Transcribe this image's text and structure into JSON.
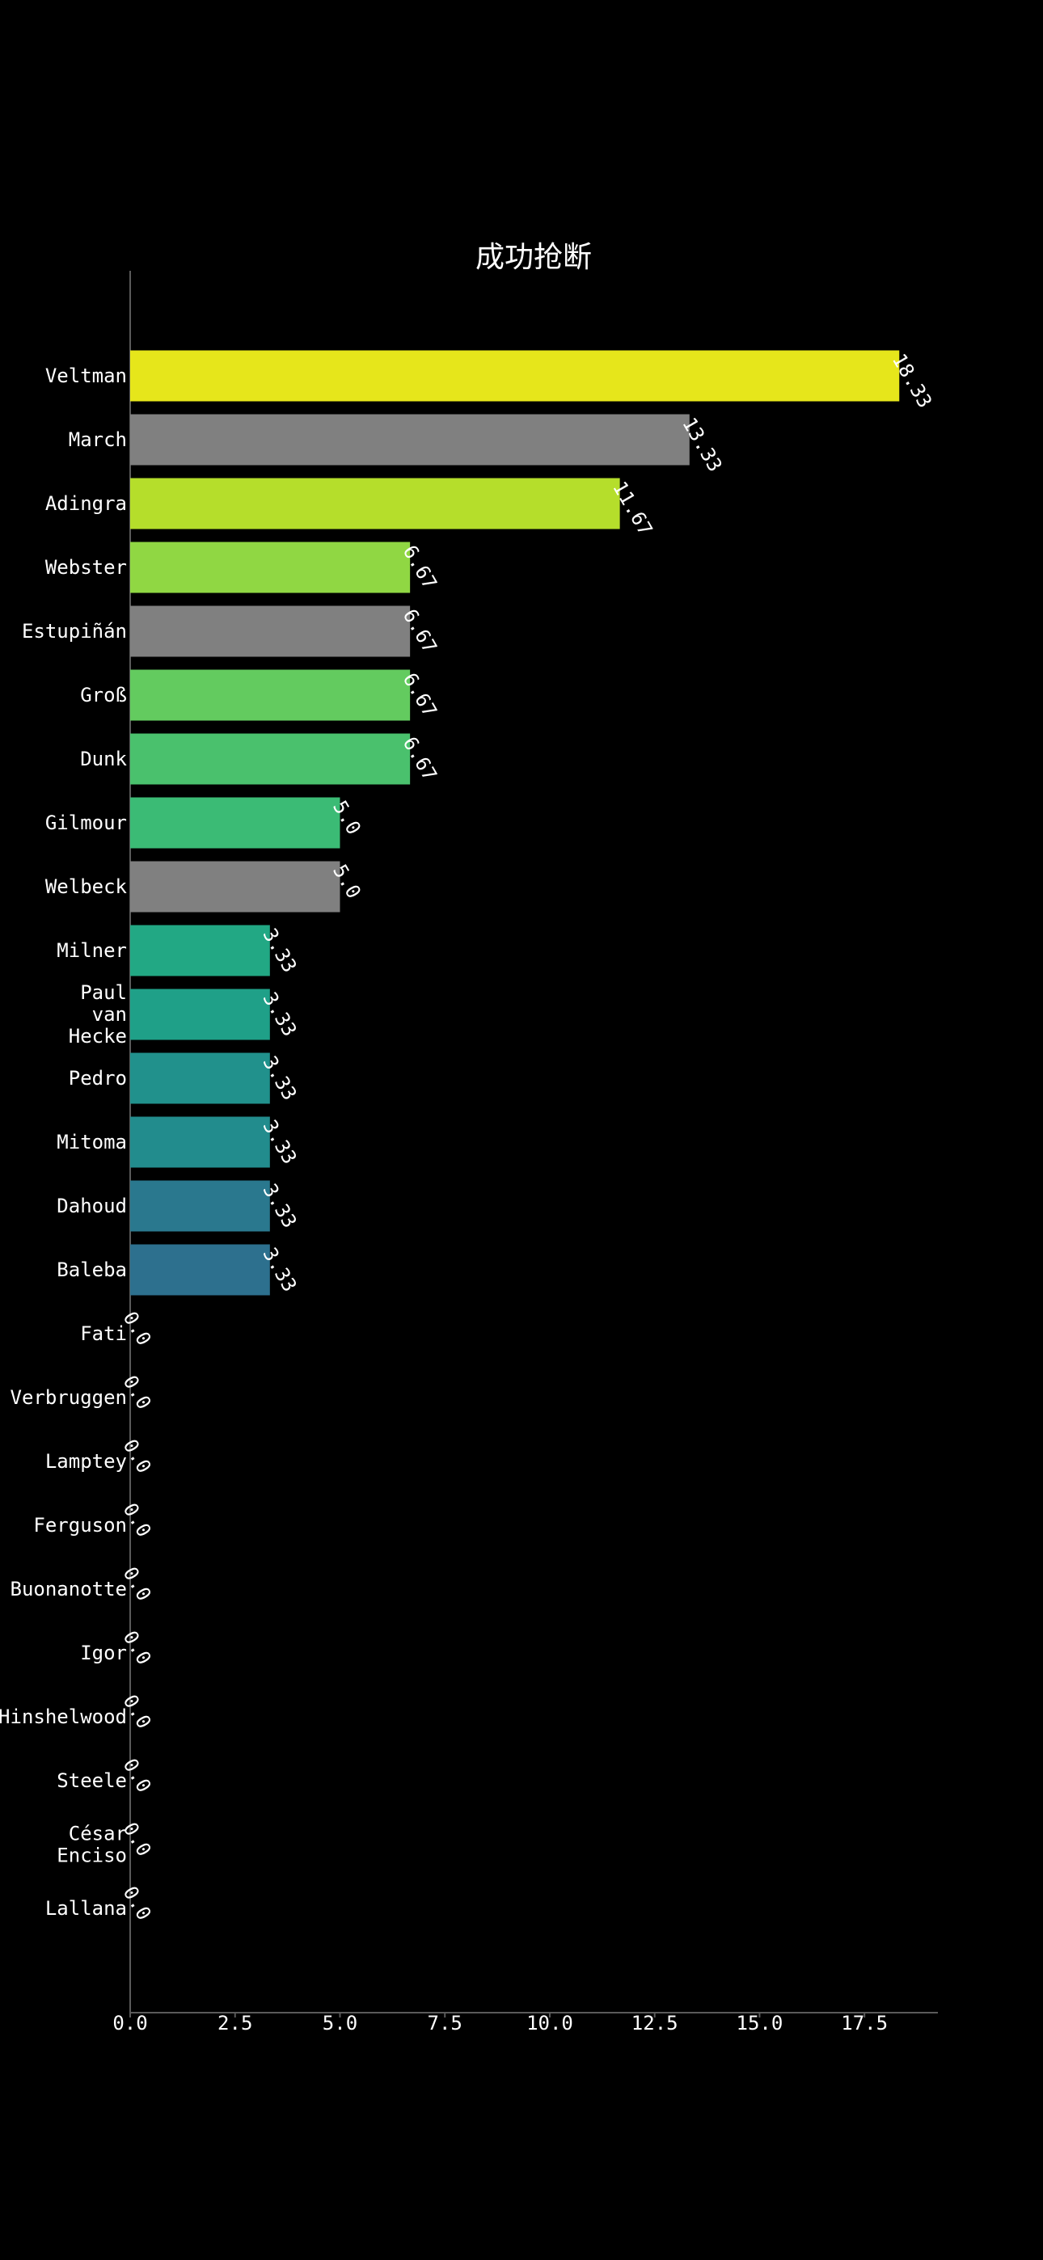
{
  "chart_data": {
    "type": "bar",
    "orientation": "horizontal",
    "title": "成功抢断",
    "xlabel": "",
    "ylabel": "",
    "xlim": [
      0,
      19.25
    ],
    "xticks": [
      "0.0",
      "2.5",
      "5.0",
      "7.5",
      "10.0",
      "12.5",
      "15.0",
      "17.5"
    ],
    "grid": false,
    "categories": [
      {
        "label": [
          "Veltman"
        ],
        "value": 18.33,
        "value_label": "18.33",
        "color": "#e6e61b"
      },
      {
        "label": [
          "March"
        ],
        "value": 13.33,
        "value_label": "13.33",
        "color": "#808080"
      },
      {
        "label": [
          "Adingra"
        ],
        "value": 11.67,
        "value_label": "11.67",
        "color": "#b5de2b"
      },
      {
        "label": [
          "Webster"
        ],
        "value": 6.67,
        "value_label": "6.67",
        "color": "#90d743"
      },
      {
        "label": [
          "Estupiñán"
        ],
        "value": 6.67,
        "value_label": "6.67",
        "color": "#808080"
      },
      {
        "label": [
          "Groß"
        ],
        "value": 6.67,
        "value_label": "6.67",
        "color": "#63cb5f"
      },
      {
        "label": [
          "Dunk"
        ],
        "value": 6.67,
        "value_label": "6.67",
        "color": "#4ac16d"
      },
      {
        "label": [
          "Gilmour"
        ],
        "value": 5.0,
        "value_label": "5.0",
        "color": "#3bbb75"
      },
      {
        "label": [
          "Welbeck"
        ],
        "value": 5.0,
        "value_label": "5.0",
        "color": "#808080"
      },
      {
        "label": [
          "Milner"
        ],
        "value": 3.33,
        "value_label": "3.33",
        "color": "#22a884"
      },
      {
        "label": [
          "Paul",
          "van",
          "Hecke"
        ],
        "value": 3.33,
        "value_label": "3.33",
        "color": "#1fa088"
      },
      {
        "label": [
          "Pedro"
        ],
        "value": 3.33,
        "value_label": "3.33",
        "color": "#21918c"
      },
      {
        "label": [
          "Mitoma"
        ],
        "value": 3.33,
        "value_label": "3.33",
        "color": "#228c8d"
      },
      {
        "label": [
          "Dahoud"
        ],
        "value": 3.33,
        "value_label": "3.33",
        "color": "#2a788e"
      },
      {
        "label": [
          "Baleba"
        ],
        "value": 3.33,
        "value_label": "3.33",
        "color": "#2d708e"
      },
      {
        "label": [
          "Fati"
        ],
        "value": 0.0,
        "value_label": "0.0",
        "color": "#3b528b"
      },
      {
        "label": [
          "Verbruggen"
        ],
        "value": 0.0,
        "value_label": "0.0",
        "color": "#414487"
      },
      {
        "label": [
          "Lamptey"
        ],
        "value": 0.0,
        "value_label": "0.0",
        "color": "#472d7b"
      },
      {
        "label": [
          "Ferguson"
        ],
        "value": 0.0,
        "value_label": "0.0",
        "color": "#482173"
      },
      {
        "label": [
          "Buonanotte"
        ],
        "value": 0.0,
        "value_label": "0.0",
        "color": "#481a6c"
      },
      {
        "label": [
          "Igor"
        ],
        "value": 0.0,
        "value_label": "0.0",
        "color": "#471063"
      },
      {
        "label": [
          "Hinshelwood"
        ],
        "value": 0.0,
        "value_label": "0.0",
        "color": "#46085c"
      },
      {
        "label": [
          "Steele"
        ],
        "value": 0.0,
        "value_label": "0.0",
        "color": "#440154"
      },
      {
        "label": [
          "César",
          "Enciso"
        ],
        "value": 0.0,
        "value_label": "0.0",
        "color": "#440154"
      },
      {
        "label": [
          "Lallana"
        ],
        "value": 0.0,
        "value_label": "0.0",
        "color": "#440154"
      }
    ]
  }
}
